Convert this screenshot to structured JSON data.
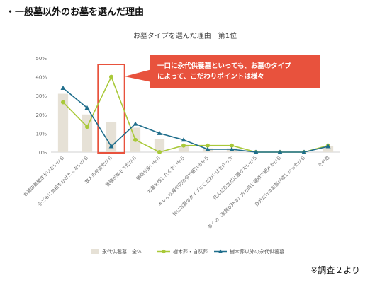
{
  "page": {
    "heading": "・一般墓以外のお墓を選んだ理由",
    "footer": "※調査２より"
  },
  "callout": {
    "line1": "一口に永代供養墓といっても、お墓のタイプ",
    "line2": "によって、こだわりポイントは様々"
  },
  "colors": {
    "bar": "#e6e1d6",
    "green": "#a9c939",
    "blue": "#1f6e8c",
    "highlight": "#e8523d"
  },
  "chart_data": {
    "type": "bar",
    "title": "お墓タイプを選んだ理由　第1位",
    "ylim": [
      0,
      50
    ],
    "yticks": [
      "0%",
      "10%",
      "20%",
      "30%",
      "40%",
      "50%"
    ],
    "categories": [
      "お墓の跡継ぎがいないから",
      "子どもに負担をかけたくないから",
      "故人の希望だから",
      "管理が楽そうだから",
      "価格が安いから",
      "お墓を残したくないから",
      "キレイな緑や花の中で眠れるから",
      "特にお墓のタイプにこだわりはなかった",
      "死んだら自然に還りたいから",
      "多くの（家族以外の）方と同じ場所で眠れるから",
      "自分だけのお墓が欲しかったから",
      "その他"
    ],
    "series": [
      {
        "name": "永代供養墓　全体",
        "kind": "bar",
        "values": [
          31,
          20,
          16,
          13,
          7,
          3,
          2,
          2,
          0,
          0,
          0,
          3
        ]
      },
      {
        "name": "樹木葬・自然葬",
        "kind": "line",
        "values": [
          26.5,
          13.5,
          40,
          6.5,
          0,
          3.5,
          3.5,
          3.5,
          0,
          0,
          0,
          3.5
        ]
      },
      {
        "name": "樹木葬以外の永代供養墓",
        "kind": "line",
        "values": [
          34,
          23.5,
          3,
          15,
          10,
          6.5,
          1.5,
          1.5,
          0,
          0,
          0,
          3
        ]
      }
    ],
    "highlight_category_index": 2,
    "legend_position": "bottom"
  }
}
